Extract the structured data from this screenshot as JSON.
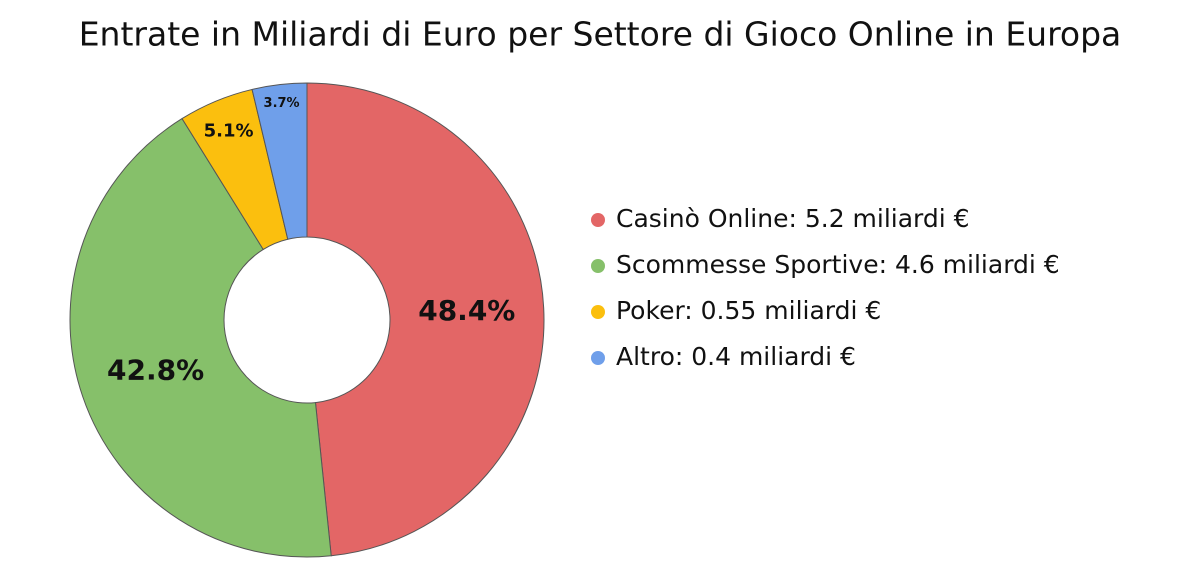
{
  "chart_data": {
    "type": "donut",
    "title": "Entrate in Miliardi di Euro per Settore di Gioco Online in Europa",
    "categories": [
      "Casinò Online: 5.2 miliardi €",
      "Scommesse Sportive: 4.6 miliardi €",
      "Poker: 0.55 miliardi €",
      "Altro: 0.4 miliardi €"
    ],
    "values": [
      5.2,
      4.6,
      0.55,
      0.4
    ],
    "value_labels": [
      "48.4%",
      "42.8%",
      "5.1%",
      "3.7%"
    ],
    "colors": [
      "#e36666",
      "#86c06a",
      "#fbbf0e",
      "#6f9fea"
    ],
    "legend": "right"
  }
}
